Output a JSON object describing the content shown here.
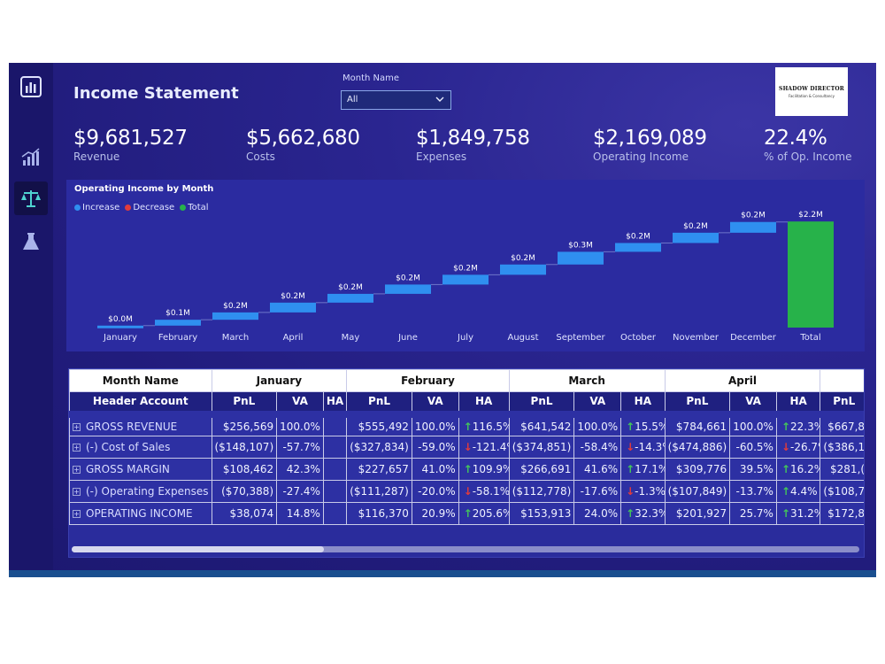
{
  "header": {
    "title": "Income Statement",
    "filter_label": "Month Name",
    "filter_value": "All",
    "logo_line1": "SHADOW DIRECTOR",
    "logo_line2": "Facilitation & Consultancy"
  },
  "nav": {
    "items": [
      {
        "icon": "bar-chart-icon",
        "active": false
      },
      {
        "icon": "trend-chart-icon",
        "active": false
      },
      {
        "icon": "scales-icon",
        "active": true
      },
      {
        "icon": "flask-icon",
        "active": false
      }
    ]
  },
  "kpis": [
    {
      "value": "$9,681,527",
      "label": "Revenue"
    },
    {
      "value": "$5,662,680",
      "label": "Costs"
    },
    {
      "value": "$1,849,758",
      "label": "Expenses"
    },
    {
      "value": "$2,169,089",
      "label": "Operating Income"
    },
    {
      "value": "22.4%",
      "label": "% of Op. Income"
    }
  ],
  "chart": {
    "title": "Operating Income by Month",
    "legend": [
      {
        "name": "Increase",
        "color": "#2f8ff0"
      },
      {
        "name": "Decrease",
        "color": "#e23b3b"
      },
      {
        "name": "Total",
        "color": "#27b24a"
      }
    ]
  },
  "chart_data": {
    "type": "waterfall",
    "title": "Operating Income by Month",
    "categories": [
      "January",
      "February",
      "March",
      "April",
      "May",
      "June",
      "July",
      "August",
      "September",
      "October",
      "November",
      "December",
      "Total"
    ],
    "values": [
      0.04,
      0.12,
      0.15,
      0.2,
      0.18,
      0.19,
      0.2,
      0.21,
      0.26,
      0.18,
      0.21,
      0.22,
      2.17
    ],
    "labels": [
      "$0.0M",
      "$0.1M",
      "$0.2M",
      "$0.2M",
      "$0.2M",
      "$0.2M",
      "$0.2M",
      "$0.2M",
      "$0.3M",
      "$0.2M",
      "$0.2M",
      "$0.2M",
      "$2.2M"
    ],
    "kinds": [
      "increase",
      "increase",
      "increase",
      "increase",
      "increase",
      "increase",
      "increase",
      "increase",
      "increase",
      "increase",
      "increase",
      "increase",
      "total"
    ],
    "ylim": [
      0,
      2.3
    ]
  },
  "table": {
    "row1_header": "Month Name",
    "row2_header": "Header Account",
    "months": [
      {
        "name": "January",
        "cols": [
          "PnL",
          "VA",
          "HA"
        ]
      },
      {
        "name": "February",
        "cols": [
          "PnL",
          "VA",
          "HA"
        ]
      },
      {
        "name": "March",
        "cols": [
          "PnL",
          "VA",
          "HA"
        ]
      },
      {
        "name": "April",
        "cols": [
          "PnL",
          "VA",
          "HA"
        ]
      },
      {
        "name": "",
        "cols": [
          "PnL"
        ]
      }
    ],
    "rows": [
      {
        "name": "GROSS REVENUE",
        "cells": [
          [
            "$256,569",
            "100.0%",
            "",
            ""
          ],
          [
            "$555,492",
            "100.0%",
            "up",
            "116.5%"
          ],
          [
            "$641,542",
            "100.0%",
            "up",
            "15.5%"
          ],
          [
            "$784,661",
            "100.0%",
            "up",
            "22.3%"
          ],
          [
            "$667,8"
          ]
        ]
      },
      {
        "name": "(-) Cost of Sales",
        "cells": [
          [
            "($148,107)",
            "-57.7%",
            "",
            ""
          ],
          [
            "($327,834)",
            "-59.0%",
            "down",
            "-121.4%"
          ],
          [
            "($374,851)",
            "-58.4%",
            "down",
            "-14.3%"
          ],
          [
            "($474,886)",
            "-60.5%",
            "down",
            "-26.7%"
          ],
          [
            "($386,1"
          ]
        ]
      },
      {
        "name": "GROSS MARGIN",
        "cells": [
          [
            "$108,462",
            "42.3%",
            "",
            ""
          ],
          [
            "$227,657",
            "41.0%",
            "up",
            "109.9%"
          ],
          [
            "$266,691",
            "41.6%",
            "up",
            "17.1%"
          ],
          [
            "$309,776",
            "39.5%",
            "up",
            "16.2%"
          ],
          [
            "$281,("
          ]
        ]
      },
      {
        "name": "(-) Operating Expenses",
        "cells": [
          [
            "($70,388)",
            "-27.4%",
            "",
            ""
          ],
          [
            "($111,287)",
            "-20.0%",
            "down",
            "-58.1%"
          ],
          [
            "($112,778)",
            "-17.6%",
            "down",
            "-1.3%"
          ],
          [
            "($107,849)",
            "-13.7%",
            "up",
            "4.4%"
          ],
          [
            "($108,7"
          ]
        ]
      },
      {
        "name": "OPERATING INCOME",
        "cells": [
          [
            "$38,074",
            "14.8%",
            "",
            ""
          ],
          [
            "$116,370",
            "20.9%",
            "up",
            "205.6%"
          ],
          [
            "$153,913",
            "24.0%",
            "up",
            "32.3%"
          ],
          [
            "$201,927",
            "25.7%",
            "up",
            "31.2%"
          ],
          [
            "$172,8"
          ]
        ]
      }
    ]
  }
}
